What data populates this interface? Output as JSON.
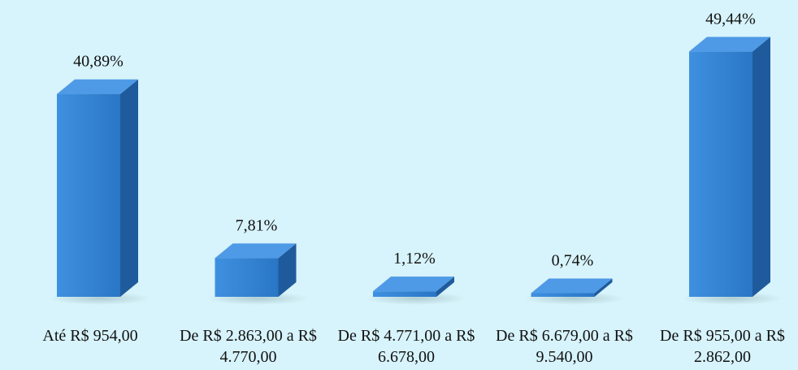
{
  "chart_data": {
    "type": "bar3d",
    "categories": [
      "Até R$ 954,00",
      "De R$ 2.863,00 a R$ 4.770,00",
      "De R$ 4.771,00 a R$ 6.678,00",
      "De R$ 6.679,00 a R$ 9.540,00",
      "De R$ 955,00 a R$ 2.862,00"
    ],
    "values": [
      40.89,
      7.81,
      1.12,
      0.74,
      49.44
    ],
    "value_labels": [
      "40,89%",
      "7,81%",
      "1,12%",
      "0,74%",
      "49,44%"
    ],
    "color": "#2f80d2"
  }
}
